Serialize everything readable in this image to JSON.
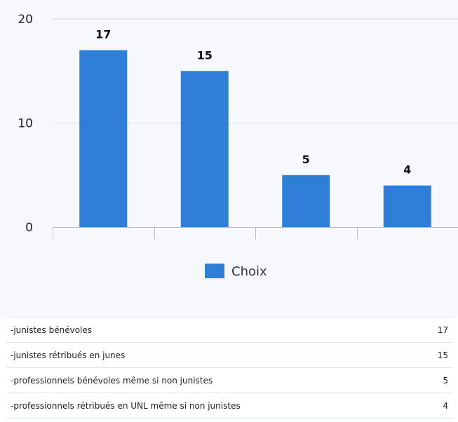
{
  "chart_data": {
    "type": "bar",
    "categories": [
      "",
      "",
      "",
      ""
    ],
    "values": [
      17,
      15,
      5,
      4
    ],
    "data_labels": [
      "17",
      "15",
      "5",
      "4"
    ],
    "yticks": [
      0,
      10,
      20
    ],
    "ylim": [
      0,
      20
    ],
    "grid": true,
    "legend": {
      "label": "Choix",
      "placement": "bottom",
      "color": "#2f7ed8"
    },
    "bar_color": "#2f7ed8"
  },
  "table": {
    "rows": [
      {
        "label": "-junistes bénévoles",
        "value": "17"
      },
      {
        "label": "-junistes rétribués en junes",
        "value": "15"
      },
      {
        "label": "-professionnels bénévoles même si non junistes",
        "value": "5"
      },
      {
        "label": "-professionnels rétribués en UNL même si non junistes",
        "value": "4"
      }
    ]
  }
}
